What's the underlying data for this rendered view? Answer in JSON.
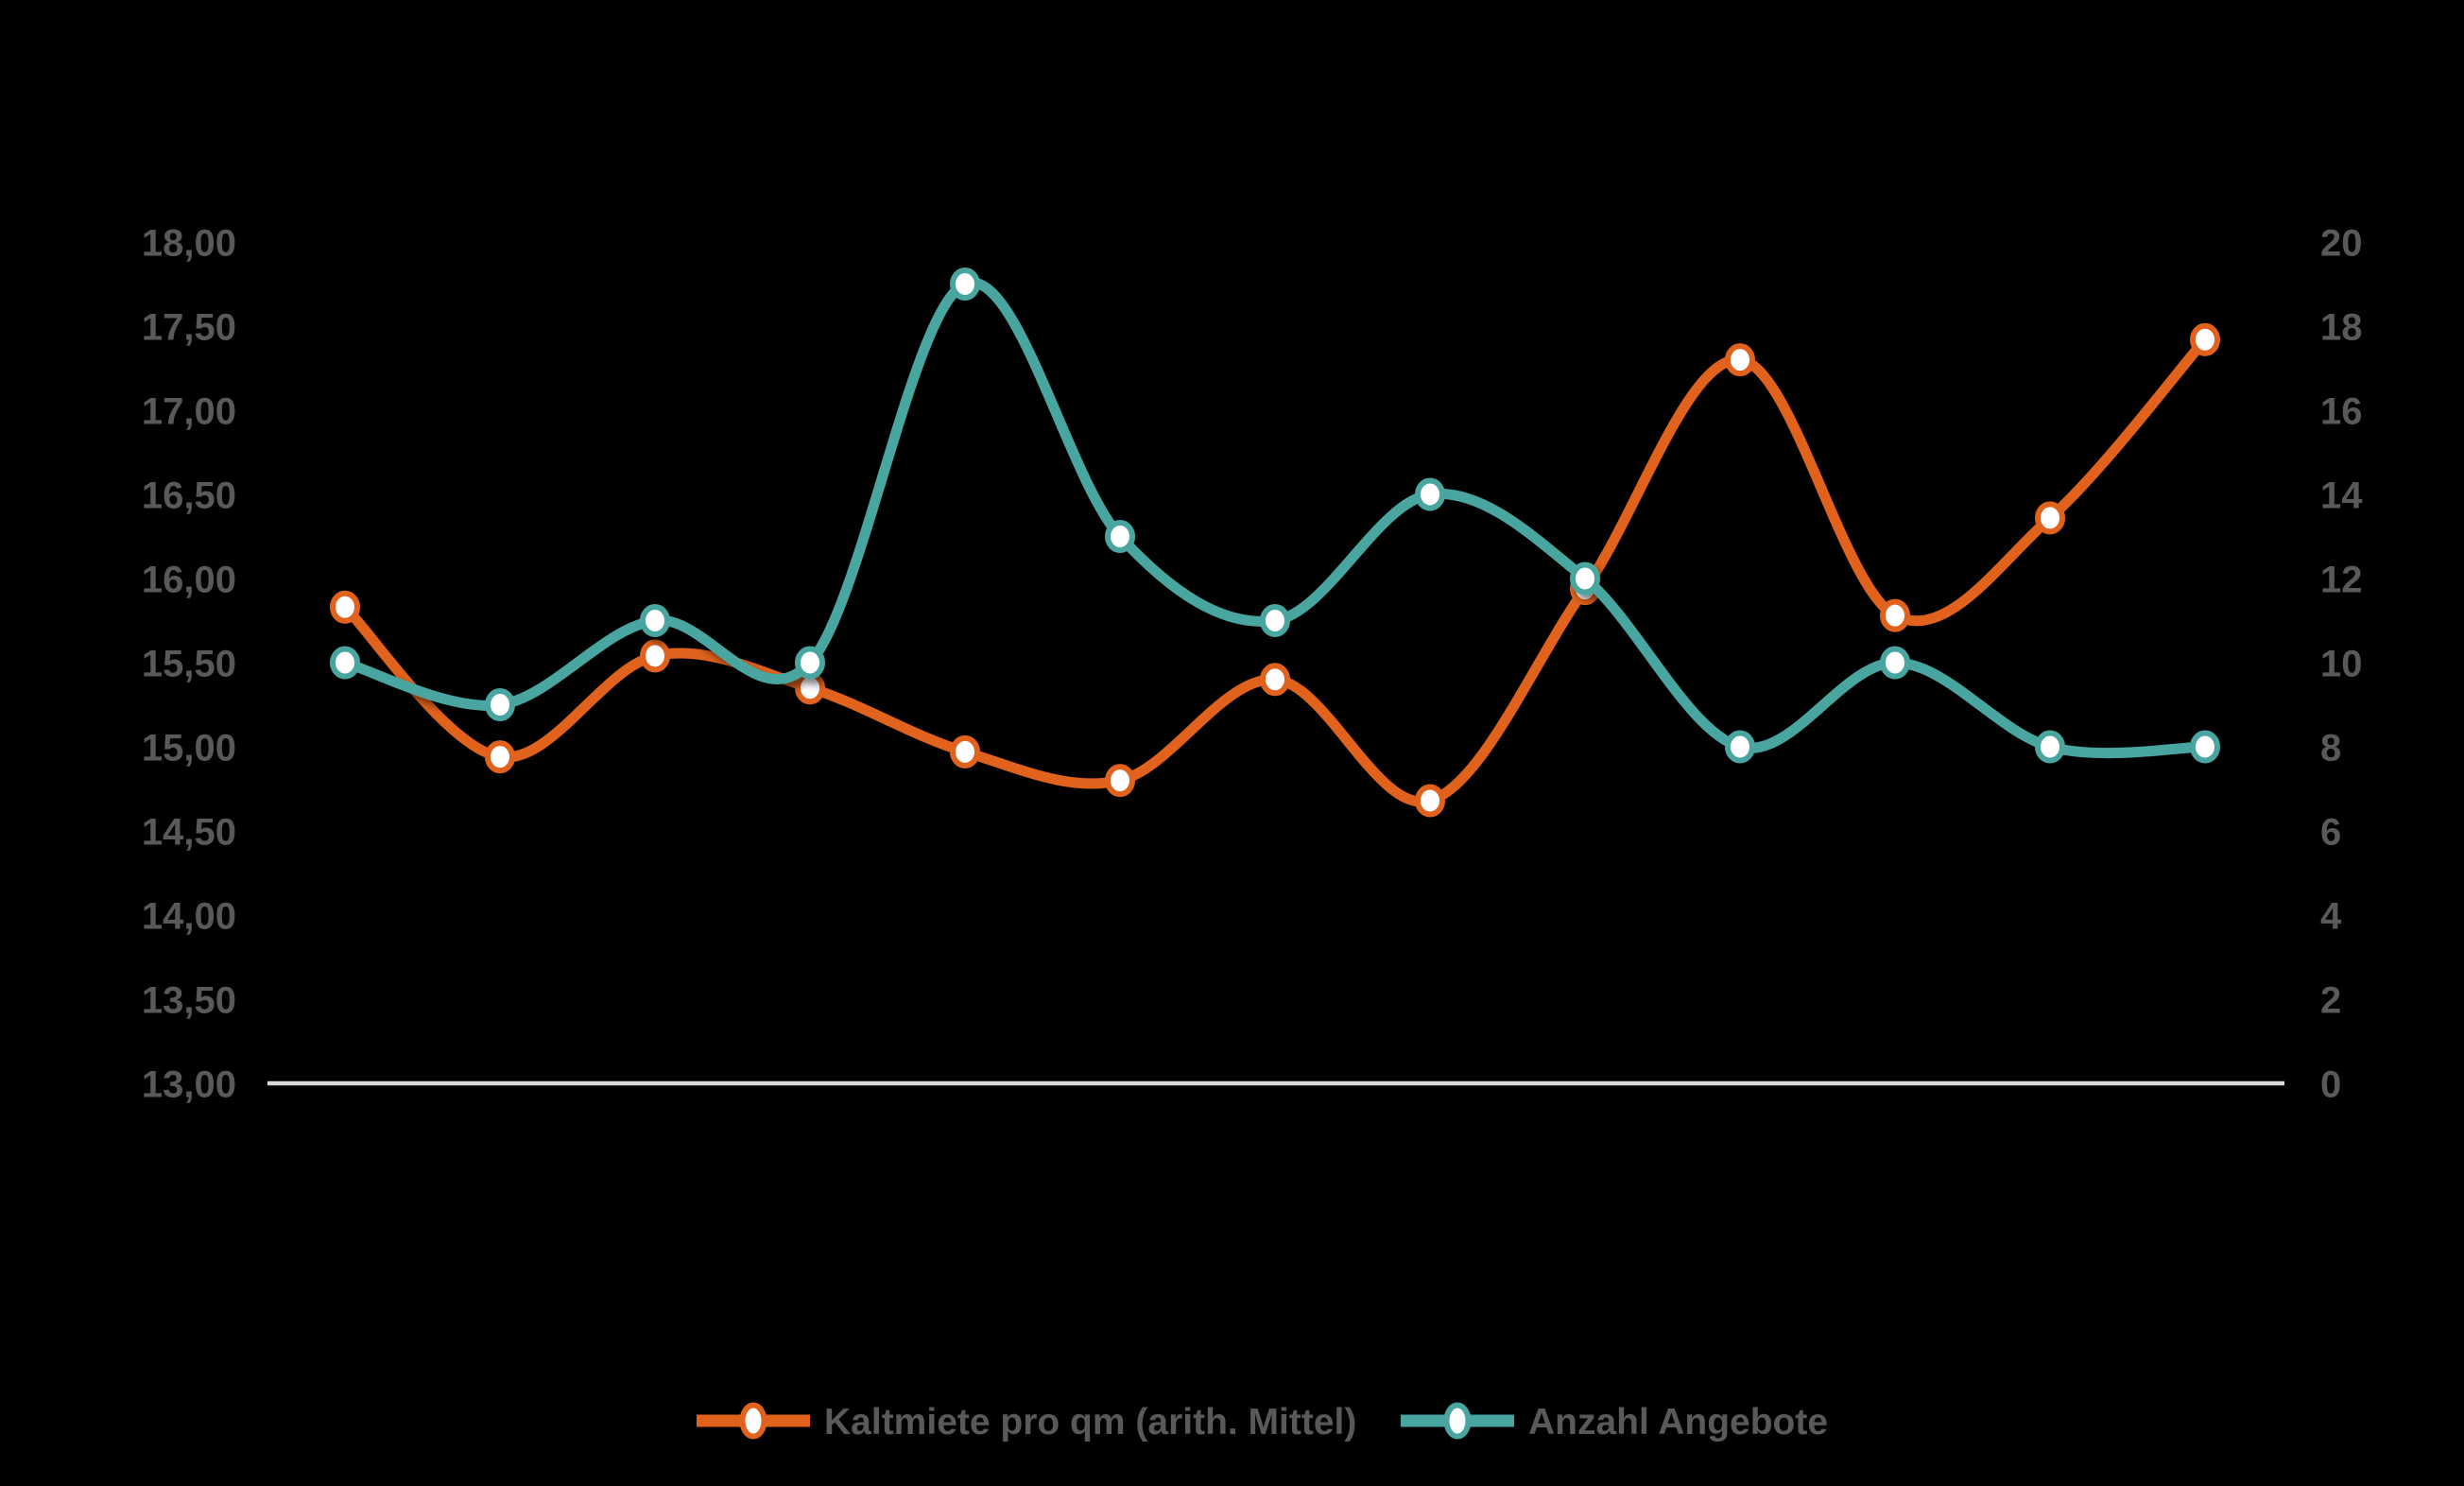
{
  "chart_data": {
    "type": "line",
    "title": "",
    "x_labels": [],
    "categories_note": "no x-axis labels are rendered in the image; 13 evenly spaced points",
    "series": [
      {
        "name": "Kaltmiete pro qm (arith. Mittel)",
        "axis": "left",
        "color": "#E0621C",
        "values": [
          15.83,
          14.94,
          15.54,
          15.35,
          14.97,
          14.8,
          15.4,
          14.68,
          15.94,
          17.3,
          15.78,
          16.36,
          17.42
        ]
      },
      {
        "name": "Anzahl Angebote",
        "axis": "right",
        "color": "#48A5A0",
        "values": [
          10,
          9,
          11,
          10,
          19,
          13,
          11,
          14,
          12,
          8,
          10,
          8,
          8
        ]
      }
    ],
    "left_axis": {
      "min": 13.0,
      "max": 18.0,
      "step": 0.5,
      "ticks": [
        "18,00",
        "17,50",
        "17,00",
        "16,50",
        "16,00",
        "15,50",
        "15,00",
        "14,50",
        "14,00",
        "13,50",
        "13,00"
      ]
    },
    "right_axis": {
      "min": 0,
      "max": 20,
      "step": 2,
      "ticks": [
        "20",
        "18",
        "16",
        "14",
        "12",
        "10",
        "8",
        "6",
        "4",
        "2",
        "0"
      ]
    },
    "grid": false,
    "legend_position": "bottom",
    "background_color": "#000000",
    "tick_label_color": "#595959",
    "baseline_color": "#D9D9D9",
    "marker_fill": "#FFFFFF"
  },
  "legend": {
    "items": [
      {
        "label": "Kaltmiete pro qm (arith. Mittel)",
        "color": "#E0621C"
      },
      {
        "label": "Anzahl Angebote",
        "color": "#48A5A0"
      }
    ]
  }
}
